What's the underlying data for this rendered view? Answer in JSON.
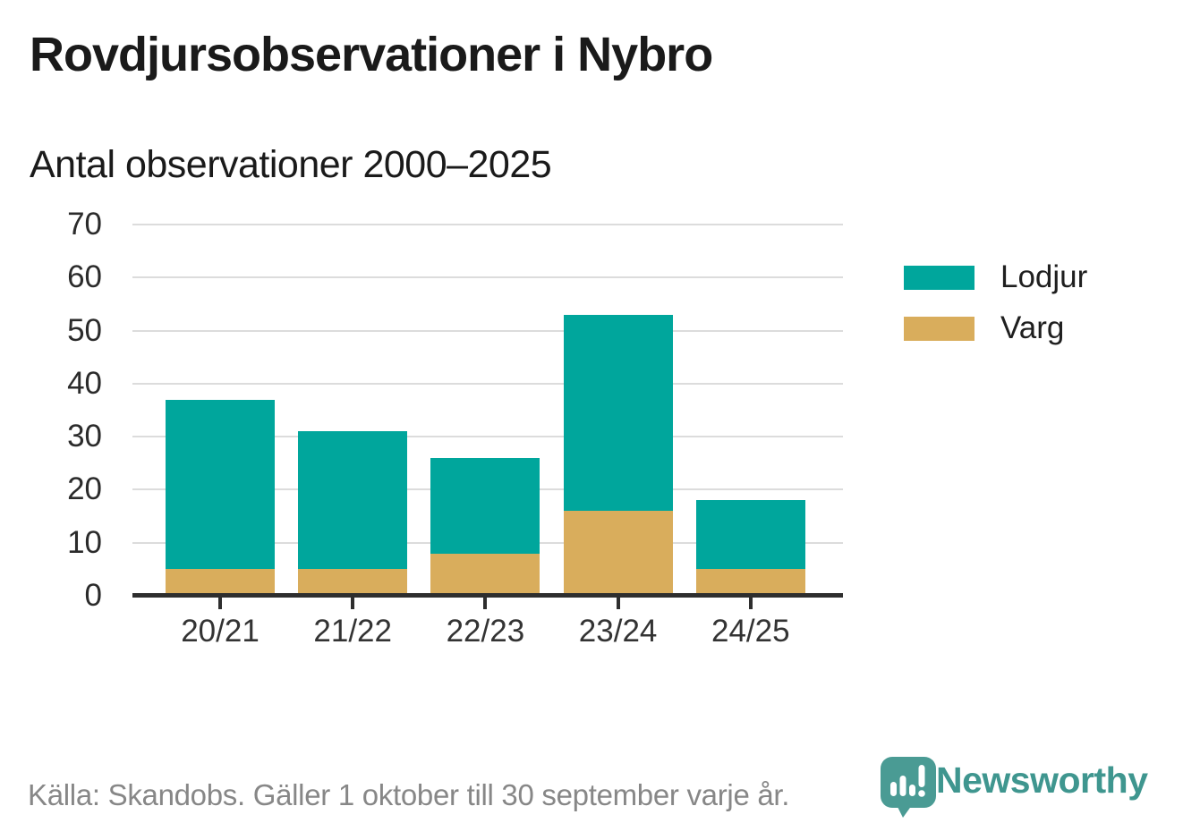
{
  "header": {
    "title": "Rovdjursobservationer i Nybro",
    "subtitle": "Antal observationer 2000–2025"
  },
  "chart_data": {
    "type": "bar",
    "stacked": true,
    "title": "Rovdjursobservationer i Nybro",
    "subtitle": "Antal observationer 2000–2025",
    "categories": [
      "20/21",
      "21/22",
      "22/23",
      "23/24",
      "24/25"
    ],
    "series": [
      {
        "name": "Lodjur",
        "color": "#00A69C",
        "values": [
          32,
          26,
          18,
          37,
          13
        ]
      },
      {
        "name": "Varg",
        "color": "#D9AD5C",
        "values": [
          5,
          5,
          8,
          16,
          5
        ]
      }
    ],
    "stack_totals": [
      37,
      31,
      26,
      53,
      18
    ],
    "xlabel": "",
    "ylabel": "",
    "ylim": [
      0,
      70
    ],
    "yticks": [
      0,
      10,
      20,
      30,
      40,
      50,
      60,
      70
    ],
    "grid": "horizontal",
    "legend_position": "right"
  },
  "legend": {
    "items": [
      {
        "label": "Lodjur",
        "color": "#00A69C"
      },
      {
        "label": "Varg",
        "color": "#D9AD5C"
      }
    ]
  },
  "footer": {
    "source": "Källa: Skandobs. Gäller 1 oktober till 30 september varje år.",
    "brand": "Newsworthy"
  },
  "colors": {
    "lodjur": "#00A69C",
    "varg": "#D9AD5C",
    "grid": "#DCDCDC",
    "axis": "#2E2E2E",
    "title_text": "#1A1A1A",
    "tick_text": "#2B2B2B",
    "source_text": "#878787",
    "brand_text": "#3F968F",
    "logo_bubble": "#4A9B94"
  }
}
